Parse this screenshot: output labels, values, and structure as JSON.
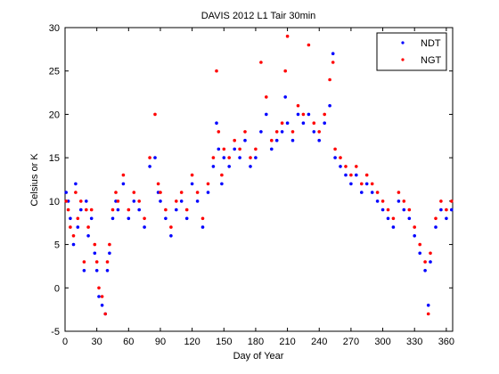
{
  "chart_data": {
    "type": "scatter",
    "title": "DAVIS 2012 L1 Tair 30min",
    "xlabel": "Day of Year",
    "ylabel": "Celsius or K",
    "xlim": [
      0,
      366
    ],
    "ylim": [
      -5,
      30
    ],
    "xticks": [
      0,
      30,
      60,
      90,
      120,
      150,
      180,
      210,
      240,
      270,
      300,
      330,
      360
    ],
    "yticks": [
      -5,
      0,
      5,
      10,
      15,
      20,
      25,
      30
    ],
    "legend_position": "top-right",
    "series": [
      {
        "name": "NDT",
        "color": "#0000ff",
        "marker": "dot",
        "x": [
          1,
          3,
          5,
          8,
          10,
          12,
          15,
          18,
          20,
          22,
          25,
          28,
          30,
          32,
          35,
          38,
          40,
          42,
          45,
          48,
          50,
          55,
          60,
          65,
          70,
          75,
          80,
          85,
          88,
          90,
          95,
          100,
          105,
          110,
          115,
          120,
          125,
          130,
          135,
          140,
          143,
          145,
          148,
          150,
          155,
          160,
          165,
          170,
          175,
          180,
          185,
          190,
          195,
          200,
          205,
          208,
          210,
          215,
          220,
          225,
          230,
          235,
          240,
          245,
          250,
          253,
          255,
          260,
          265,
          270,
          275,
          280,
          285,
          290,
          295,
          300,
          305,
          310,
          315,
          320,
          325,
          330,
          335,
          340,
          343,
          345,
          350,
          355,
          360,
          365
        ],
        "y": [
          11,
          10,
          8,
          5,
          12,
          7,
          9,
          2,
          10,
          6,
          8,
          4,
          2,
          -1,
          -2,
          -3,
          2,
          4,
          8,
          10,
          9,
          12,
          8,
          10,
          9,
          7,
          14,
          15,
          11,
          10,
          8,
          6,
          9,
          10,
          8,
          12,
          10,
          7,
          11,
          14,
          19,
          16,
          12,
          15,
          14,
          16,
          15,
          17,
          14,
          15,
          18,
          20,
          16,
          17,
          18,
          22,
          19,
          17,
          20,
          19,
          20,
          18,
          17,
          19,
          21,
          27,
          15,
          14,
          13,
          12,
          13,
          11,
          12,
          11,
          10,
          9,
          8,
          7,
          10,
          9,
          8,
          6,
          4,
          2,
          -2,
          3,
          7,
          9,
          8,
          9
        ]
      },
      {
        "name": "NGT",
        "color": "#ff0000",
        "marker": "dot",
        "x": [
          1,
          3,
          5,
          8,
          10,
          12,
          15,
          18,
          20,
          22,
          25,
          28,
          30,
          32,
          35,
          38,
          40,
          42,
          45,
          48,
          50,
          55,
          60,
          65,
          70,
          75,
          80,
          85,
          88,
          90,
          95,
          100,
          105,
          110,
          115,
          120,
          125,
          130,
          135,
          140,
          143,
          145,
          148,
          150,
          155,
          160,
          165,
          170,
          175,
          180,
          185,
          190,
          195,
          200,
          205,
          208,
          210,
          215,
          220,
          225,
          230,
          235,
          240,
          245,
          250,
          253,
          255,
          260,
          265,
          270,
          275,
          280,
          285,
          290,
          295,
          300,
          305,
          310,
          315,
          320,
          325,
          330,
          335,
          340,
          343,
          345,
          350,
          355,
          360,
          365
        ],
        "y": [
          10,
          9,
          7,
          6,
          11,
          8,
          10,
          3,
          9,
          7,
          9,
          5,
          3,
          0,
          -1,
          -3,
          3,
          5,
          9,
          11,
          10,
          13,
          9,
          11,
          10,
          8,
          15,
          20,
          12,
          11,
          9,
          7,
          10,
          11,
          9,
          13,
          11,
          8,
          12,
          15,
          25,
          18,
          13,
          16,
          15,
          17,
          16,
          18,
          15,
          16,
          26,
          22,
          17,
          18,
          19,
          25,
          29,
          18,
          21,
          20,
          28,
          19,
          18,
          20,
          24,
          26,
          16,
          15,
          14,
          13,
          14,
          12,
          13,
          12,
          11,
          10,
          9,
          8,
          11,
          10,
          9,
          7,
          5,
          3,
          -3,
          4,
          8,
          10,
          9,
          10
        ]
      }
    ]
  }
}
